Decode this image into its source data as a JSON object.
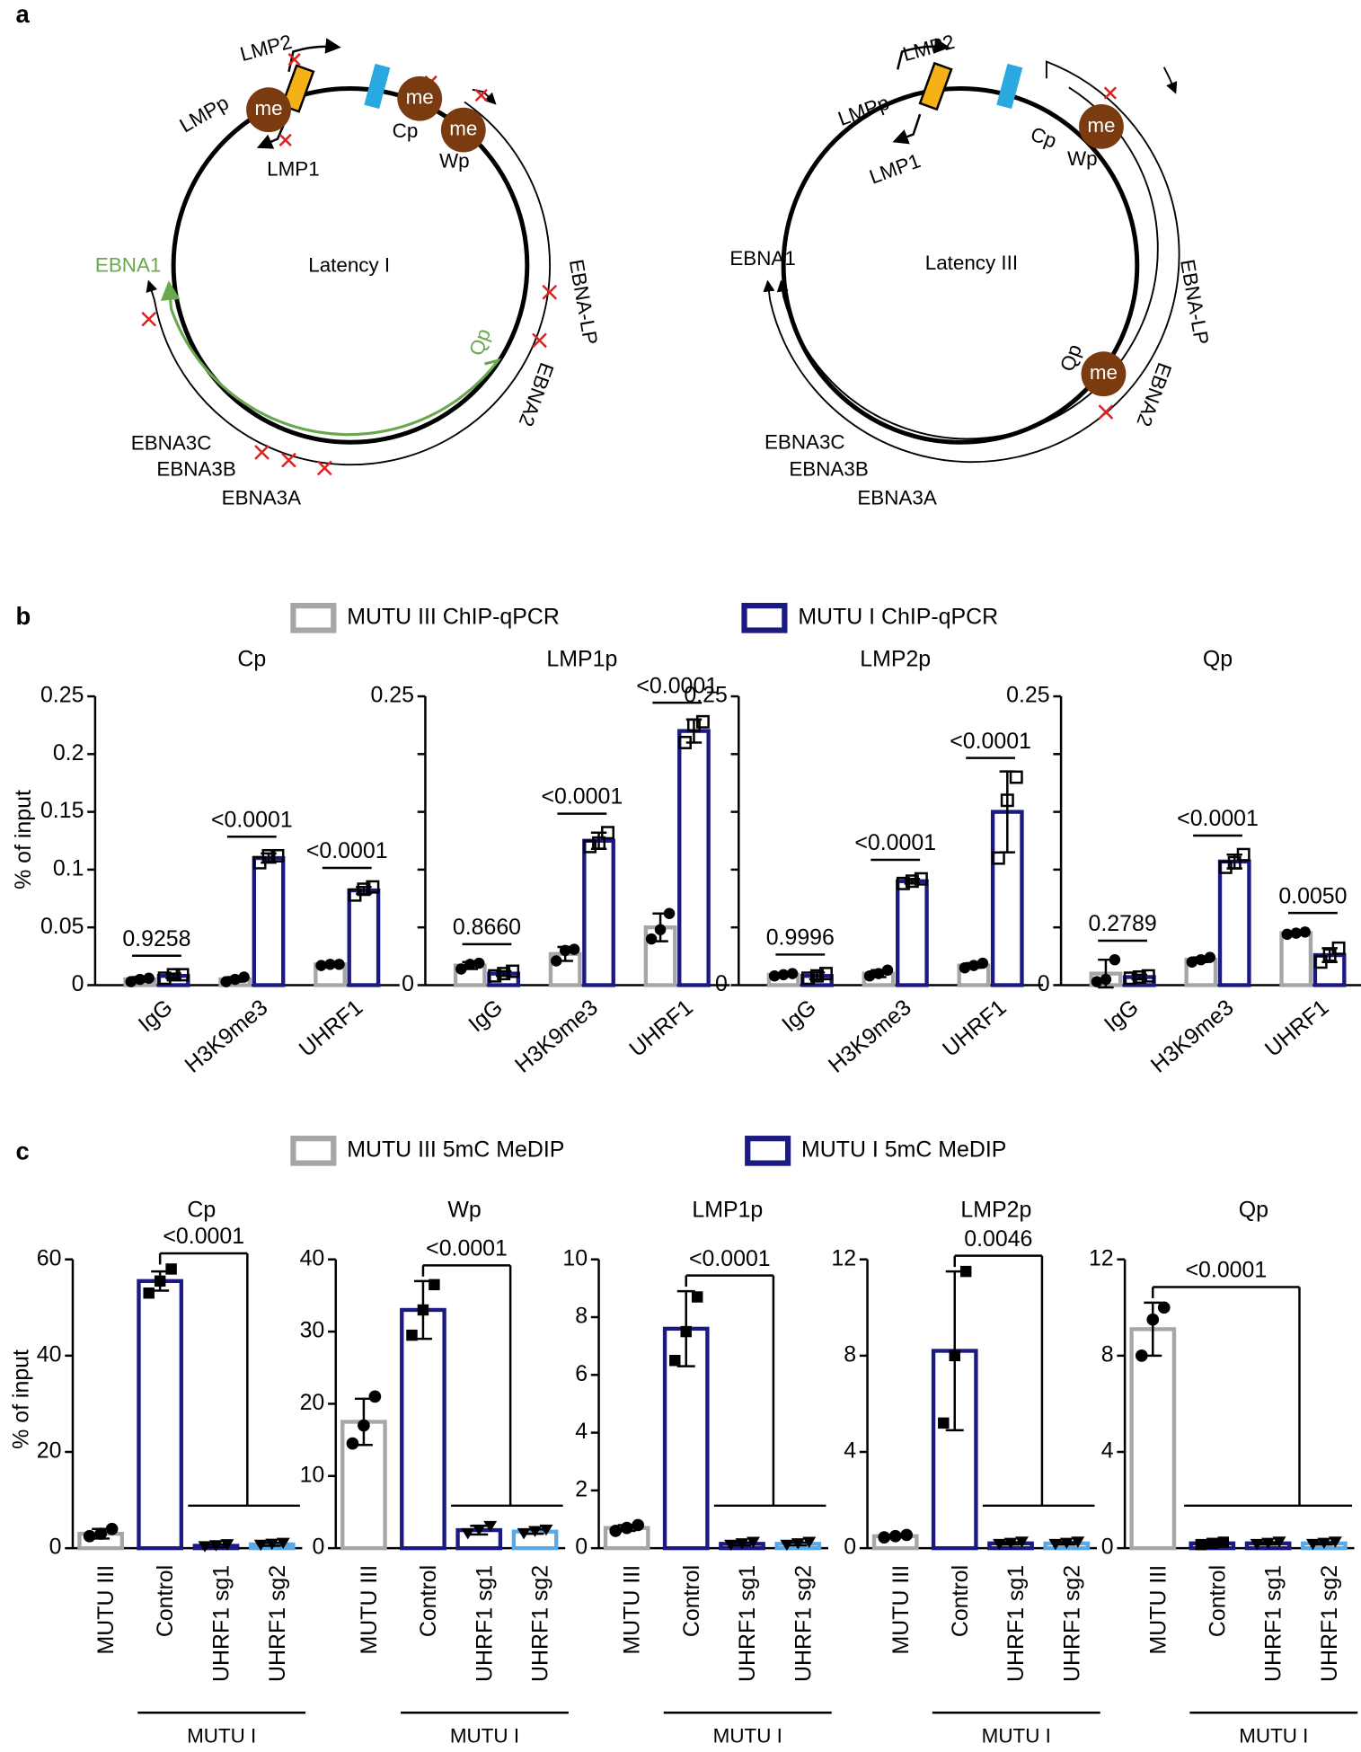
{
  "figure": {
    "panel_labels": [
      "a",
      "b",
      "c"
    ]
  },
  "diagrams": [
    {
      "title": "Latency I",
      "labels": [
        "LMP2",
        "LMPp",
        "me",
        "me",
        "me",
        "Cp",
        "Wp",
        "LMP1",
        "EBNA1",
        "EBNA-LP",
        "Qp",
        "EBNA2",
        "EBNA3C",
        "EBNA3B",
        "EBNA3A"
      ]
    },
    {
      "title": "Latency III",
      "labels": [
        "LMP2",
        "LMPp",
        "LMP1",
        "Cp",
        "Wp",
        "me",
        "me",
        "EBNA1",
        "EBNA-LP",
        "Qp",
        "EBNA2",
        "EBNA3C",
        "EBNA3B",
        "EBNA3A"
      ]
    }
  ],
  "chart_data": [
    {
      "type": "grouped_bar",
      "title": "Cp",
      "ylabel": "% of input",
      "legend": [
        {
          "name": "MUTU III ChIP-qPCR",
          "color": "#a6a6a6"
        },
        {
          "name": "MUTU I  ChIP-qPCR",
          "color": "#1a1a80"
        }
      ],
      "categories": [
        "IgG",
        "H3K9me3",
        "UHRF1"
      ],
      "series": [
        {
          "color": "#a6a6a6",
          "values": [
            0.005,
            0.005,
            0.018
          ],
          "errors": [
            0.002,
            0.002,
            0.001
          ],
          "points": [
            [
              0.003,
              0.005,
              0.006
            ],
            [
              0.003,
              0.005,
              0.007
            ],
            [
              0.017,
              0.018,
              0.018
            ]
          ]
        },
        {
          "color": "#1a1a80",
          "values": [
            0.008,
            0.11,
            0.082
          ],
          "errors": [
            0.002,
            0.004,
            0.003
          ],
          "points": [
            [
              0.006,
              0.009,
              0.009
            ],
            [
              0.106,
              0.112,
              0.112
            ],
            [
              0.078,
              0.083,
              0.085
            ]
          ]
        }
      ],
      "annotations": [
        "0.9258",
        "<0.0001",
        "<0.0001"
      ],
      "ylim": [
        0,
        0.25
      ],
      "yticks": [
        0,
        0.05,
        0.1,
        0.15,
        0.2,
        0.25
      ]
    },
    {
      "type": "grouped_bar",
      "title": "LMP1p",
      "categories": [
        "IgG",
        "H3K9me3",
        "UHRF1"
      ],
      "series": [
        {
          "color": "#a6a6a6",
          "values": [
            0.017,
            0.027,
            0.05
          ],
          "errors": [
            0.003,
            0.006,
            0.012
          ],
          "points": [
            [
              0.014,
              0.018,
              0.019
            ],
            [
              0.021,
              0.03,
              0.031
            ],
            [
              0.04,
              0.048,
              0.062
            ]
          ]
        },
        {
          "color": "#1a1a80",
          "values": [
            0.01,
            0.125,
            0.22
          ],
          "errors": [
            0.002,
            0.007,
            0.01
          ],
          "points": [
            [
              0.008,
              0.01,
              0.012
            ],
            [
              0.12,
              0.123,
              0.132
            ],
            [
              0.21,
              0.225,
              0.228
            ]
          ]
        }
      ],
      "annotations": [
        "0.8660",
        "<0.0001",
        "<0.0001"
      ],
      "ylim": [
        0,
        0.25
      ],
      "yticks": [
        0,
        0.25
      ],
      "minor_yticks": [
        0.05,
        0.1,
        0.15,
        0.2
      ]
    },
    {
      "type": "grouped_bar",
      "title": "LMP2p",
      "categories": [
        "IgG",
        "H3K9me3",
        "UHRF1"
      ],
      "series": [
        {
          "color": "#a6a6a6",
          "values": [
            0.009,
            0.01,
            0.017
          ],
          "errors": [
            0.001,
            0.003,
            0.002
          ],
          "points": [
            [
              0.008,
              0.009,
              0.01
            ],
            [
              0.008,
              0.01,
              0.013
            ],
            [
              0.015,
              0.017,
              0.019
            ]
          ]
        },
        {
          "color": "#1a1a80",
          "values": [
            0.008,
            0.09,
            0.15
          ],
          "errors": [
            0.003,
            0.002,
            0.035
          ],
          "points": [
            [
              0.006,
              0.008,
              0.01
            ],
            [
              0.088,
              0.09,
              0.092
            ],
            [
              0.11,
              0.16,
              0.18
            ]
          ]
        }
      ],
      "annotations": [
        "0.9996",
        "<0.0001",
        "<0.0001"
      ],
      "ylim": [
        0,
        0.25
      ],
      "yticks": [
        0,
        0.25
      ],
      "minor_yticks": [
        0.05,
        0.1,
        0.15,
        0.2
      ]
    },
    {
      "type": "grouped_bar",
      "title": "Qp",
      "categories": [
        "IgG",
        "H3K9me3",
        "UHRF1"
      ],
      "series": [
        {
          "color": "#a6a6a6",
          "values": [
            0.01,
            0.022,
            0.045
          ],
          "errors": [
            0.012,
            0.002,
            0.001
          ],
          "points": [
            [
              0.003,
              0.005,
              0.022
            ],
            [
              0.02,
              0.022,
              0.024
            ],
            [
              0.044,
              0.045,
              0.046
            ]
          ]
        },
        {
          "color": "#1a1a80",
          "values": [
            0.007,
            0.107,
            0.026
          ],
          "errors": [
            0.002,
            0.006,
            0.006
          ],
          "points": [
            [
              0.006,
              0.007,
              0.008
            ],
            [
              0.102,
              0.106,
              0.113
            ],
            [
              0.02,
              0.026,
              0.032
            ]
          ]
        }
      ],
      "annotations": [
        "0.2789",
        "<0.0001",
        "0.0050"
      ],
      "ylim": [
        0,
        0.25
      ],
      "yticks": [
        0,
        0.25
      ],
      "minor_yticks": [
        0.05,
        0.1,
        0.15,
        0.2
      ]
    },
    {
      "type": "bar",
      "title": "Cp",
      "ylabel": "% of input",
      "legend": [
        {
          "name": "MUTU III  5mC MeDIP",
          "color": "#a6a6a6"
        },
        {
          "name": "MUTU I  5mC MeDIP",
          "color": "#1a1a80"
        }
      ],
      "categories": [
        "MUTU III",
        "Control",
        "UHRF1 sg1",
        "UHRF1 sg2"
      ],
      "values": [
        3,
        55.5,
        0.5,
        0.8
      ],
      "errors": [
        1,
        2,
        0.3,
        0.3
      ],
      "points": [
        [
          2.5,
          3,
          4
        ],
        [
          53,
          55.5,
          58
        ],
        [
          0.3,
          0.5,
          0.7
        ],
        [
          0.6,
          0.8,
          1
        ]
      ],
      "colors": [
        "#a6a6a6",
        "#1a1a80",
        "#1a1a80",
        "#5aa9e6"
      ],
      "annotation": "<0.0001",
      "group_label": "MUTU I",
      "ylim": [
        0,
        60
      ],
      "yticks": [
        0,
        20,
        40,
        60
      ]
    },
    {
      "type": "bar",
      "title": "Wp",
      "categories": [
        "MUTU III",
        "Control",
        "UHRF1 sg1",
        "UHRF1 sg2"
      ],
      "values": [
        17.5,
        33,
        2.5,
        2.3
      ],
      "errors": [
        3.2,
        4,
        0.6,
        0.3
      ],
      "points": [
        [
          14.5,
          17,
          21
        ],
        [
          29.5,
          33,
          36.5
        ],
        [
          2,
          2.5,
          3
        ],
        [
          2,
          2.3,
          2.5
        ]
      ],
      "colors": [
        "#a6a6a6",
        "#1a1a80",
        "#1a1a80",
        "#5aa9e6"
      ],
      "annotation": "<0.0001",
      "group_label": "MUTU I",
      "ylim": [
        0,
        40
      ],
      "yticks": [
        0,
        10,
        20,
        30,
        40
      ]
    },
    {
      "type": "bar",
      "title": "LMP1p",
      "categories": [
        "MUTU III",
        "Control",
        "UHRF1 sg1",
        "UHRF1 sg2"
      ],
      "values": [
        0.7,
        7.6,
        0.15,
        0.15
      ],
      "errors": [
        0.1,
        1.3,
        0.05,
        0.05
      ],
      "points": [
        [
          0.6,
          0.7,
          0.8
        ],
        [
          6.5,
          7.5,
          8.7
        ],
        [
          0.1,
          0.15,
          0.2
        ],
        [
          0.1,
          0.15,
          0.2
        ]
      ],
      "colors": [
        "#a6a6a6",
        "#1a1a80",
        "#1a1a80",
        "#5aa9e6"
      ],
      "annotation": "<0.0001",
      "group_label": "MUTU I",
      "ylim": [
        0,
        10
      ],
      "yticks": [
        0,
        2,
        4,
        6,
        8,
        10
      ]
    },
    {
      "type": "bar",
      "title": "LMP2p",
      "categories": [
        "MUTU III",
        "Control",
        "UHRF1 sg1",
        "UHRF1 sg2"
      ],
      "values": [
        0.5,
        8.2,
        0.2,
        0.2
      ],
      "errors": [
        0.05,
        3.3,
        0.05,
        0.05
      ],
      "points": [
        [
          0.45,
          0.5,
          0.55
        ],
        [
          5.2,
          8,
          11.5
        ],
        [
          0.15,
          0.2,
          0.25
        ],
        [
          0.15,
          0.2,
          0.25
        ]
      ],
      "colors": [
        "#a6a6a6",
        "#1a1a80",
        "#1a1a80",
        "#5aa9e6"
      ],
      "annotation": "0.0046",
      "group_label": "MUTU I",
      "ylim": [
        0,
        12
      ],
      "yticks": [
        0,
        4,
        8,
        12
      ]
    },
    {
      "type": "bar",
      "title": "Qp",
      "categories": [
        "MUTU III",
        "Control",
        "UHRF1 sg1",
        "UHRF1 sg2"
      ],
      "values": [
        9.1,
        0.2,
        0.2,
        0.2
      ],
      "errors": [
        1.1,
        0.05,
        0.05,
        0.05
      ],
      "points": [
        [
          8,
          9.5,
          10
        ],
        [
          0.15,
          0.2,
          0.25
        ],
        [
          0.15,
          0.2,
          0.25
        ],
        [
          0.15,
          0.2,
          0.25
        ]
      ],
      "colors": [
        "#a6a6a6",
        "#1a1a80",
        "#1a1a80",
        "#5aa9e6"
      ],
      "annotation": "<0.0001",
      "group_label": "MUTU I",
      "ylim": [
        0,
        12
      ],
      "yticks": [
        0,
        4,
        8,
        12
      ]
    }
  ]
}
